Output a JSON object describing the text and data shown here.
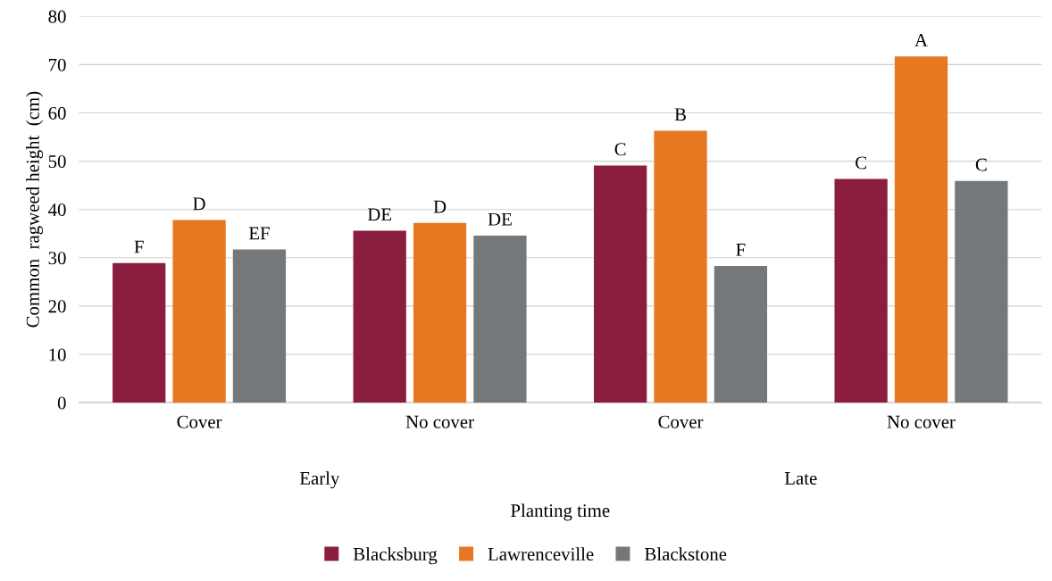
{
  "chart_data": {
    "type": "bar",
    "ylabel": "Common  ragweed height  (cm)",
    "xlabel": "Planting time",
    "categories": [
      "Cover",
      "No cover",
      "Cover",
      "No cover"
    ],
    "annotations": [
      "Early",
      "Late"
    ],
    "series": [
      {
        "name": "Blacksburg",
        "color": "#8b1e3f",
        "values": [
          28.9,
          35.6,
          49.1,
          46.3
        ],
        "value_labels": [
          "F",
          "DE",
          "C",
          "C"
        ]
      },
      {
        "name": "Lawrenceville",
        "color": "#e87722",
        "values": [
          37.8,
          37.2,
          56.3,
          71.7
        ],
        "value_labels": [
          "D",
          "D",
          "B",
          "A"
        ]
      },
      {
        "name": "Blackstone",
        "color": "#75787b",
        "values": [
          31.7,
          34.6,
          28.3,
          45.9
        ],
        "value_labels": [
          "EF",
          "DE",
          "F",
          "C"
        ]
      }
    ],
    "ylim": [
      0,
      80
    ],
    "yticks": [
      0,
      10,
      20,
      30,
      40,
      50,
      60,
      70,
      80
    ],
    "grid": "y",
    "legend": "bottom"
  }
}
